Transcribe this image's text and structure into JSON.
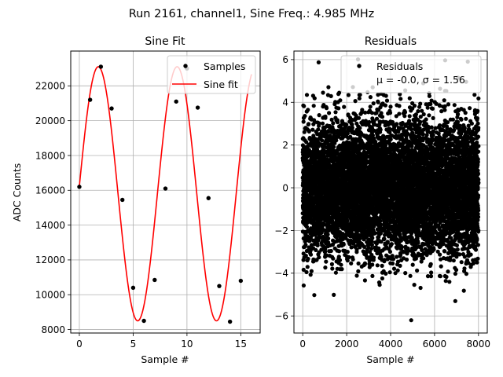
{
  "figure_title": "Run 2161, channel1, Sine Freq.: 4.985 MHz",
  "colors": {
    "fit": "#ff0000",
    "samples": "#000000",
    "grid": "#b0b0b0",
    "axes": "#000000",
    "legend_border": "#cccccc"
  },
  "chart_data": [
    {
      "type": "line",
      "title": "Sine Fit",
      "xlabel": "Sample #",
      "ylabel": "ADC Counts",
      "xlim": [
        -0.8,
        16.8
      ],
      "ylim": [
        7800,
        24000
      ],
      "xticks": [
        0,
        5,
        10,
        15
      ],
      "xtick_labels": [
        "0",
        "5",
        "10",
        "15"
      ],
      "yticks": [
        8000,
        10000,
        12000,
        14000,
        16000,
        18000,
        20000,
        22000
      ],
      "ytick_labels": [
        "8000",
        "10000",
        "12000",
        "14000",
        "16000",
        "18000",
        "20000",
        "22000"
      ],
      "grid": true,
      "legend": {
        "location": "top-right",
        "entries": [
          "Samples",
          "Sine fit"
        ]
      },
      "fit": {
        "offset": 15800,
        "amplitude": 7300,
        "cycles_per_sample": 0.1366,
        "phase_deg": 3.3,
        "x_range": [
          0,
          16
        ]
      },
      "series": [
        {
          "name": "Samples",
          "kind": "scatter",
          "x": [
            0,
            1,
            2,
            3,
            4,
            5,
            6,
            7,
            8,
            9,
            10,
            11,
            12,
            13,
            14,
            15
          ],
          "y": [
            16200,
            21200,
            23100,
            20700,
            15450,
            10400,
            8500,
            10850,
            16100,
            21100,
            23000,
            20750,
            15550,
            10500,
            8450,
            10800
          ]
        }
      ]
    },
    {
      "type": "scatter",
      "title": "Residuals",
      "xlabel": "Sample #",
      "ylabel": "",
      "xlim": [
        -400,
        8400
      ],
      "ylim": [
        -6.8,
        6.4
      ],
      "xticks": [
        0,
        2000,
        4000,
        6000,
        8000
      ],
      "xtick_labels": [
        "0",
        "2000",
        "4000",
        "6000",
        "8000"
      ],
      "yticks": [
        -6,
        -4,
        -2,
        0,
        2,
        4,
        6
      ],
      "ytick_labels": [
        "−6",
        "−4",
        "−2",
        "0",
        "2",
        "4",
        "6"
      ],
      "grid": true,
      "legend": {
        "location": "top-right",
        "entries": [
          "Residuals"
        ],
        "stats": "μ = -0.0, σ = 1.56"
      },
      "series": [
        {
          "name": "Residuals",
          "n_points": 8000,
          "mean": -0.0,
          "std": 1.56,
          "x_range": [
            0,
            8000
          ]
        }
      ]
    }
  ]
}
